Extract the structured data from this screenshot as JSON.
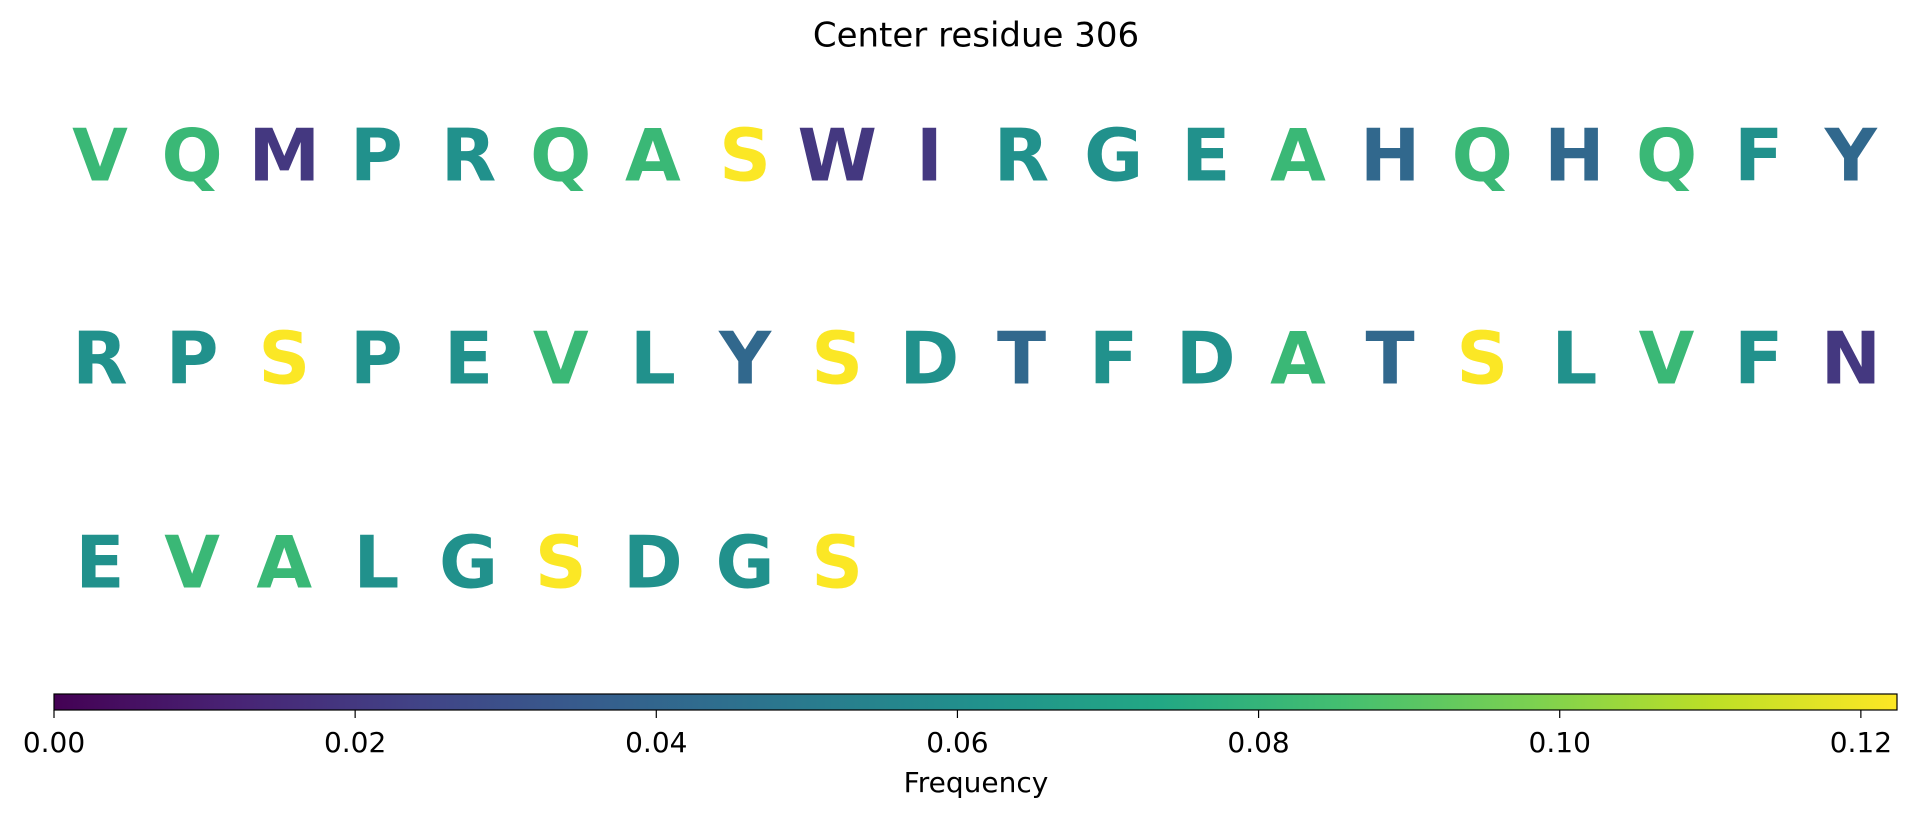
{
  "chart_data": {
    "type": "colored-sequence",
    "title": "Center residue 306",
    "letters": [
      "V",
      "Q",
      "M",
      "P",
      "R",
      "Q",
      "A",
      "S",
      "W",
      "I",
      "R",
      "G",
      "E",
      "A",
      "H",
      "Q",
      "H",
      "Q",
      "F",
      "Y",
      "R",
      "P",
      "S",
      "P",
      "E",
      "V",
      "L",
      "Y",
      "S",
      "D",
      "T",
      "F",
      "D",
      "A",
      "T",
      "S",
      "L",
      "V",
      "F",
      "N",
      "E",
      "V",
      "A",
      "L",
      "G",
      "S",
      "D",
      "G",
      "S"
    ],
    "values": [
      0.082,
      0.082,
      0.02,
      0.061,
      0.061,
      0.082,
      0.082,
      0.122,
      0.02,
      0.02,
      0.061,
      0.061,
      0.061,
      0.082,
      0.041,
      0.082,
      0.041,
      0.082,
      0.061,
      0.041,
      0.061,
      0.061,
      0.122,
      0.061,
      0.061,
      0.082,
      0.061,
      0.041,
      0.122,
      0.061,
      0.041,
      0.061,
      0.061,
      0.082,
      0.041,
      0.122,
      0.061,
      0.082,
      0.061,
      0.02,
      0.061,
      0.082,
      0.082,
      0.061,
      0.061,
      0.122,
      0.061,
      0.061,
      0.122
    ],
    "colormap": "viridis",
    "colorbar": {
      "label": "Frequency",
      "lim": [
        0,
        0.1224
      ],
      "ticks": [
        {
          "value": 0,
          "label": "0.00"
        },
        0.02,
        0.04,
        0.06,
        0.08,
        {
          "value": 0.1,
          "label": "0.10"
        },
        0.12
      ]
    }
  }
}
